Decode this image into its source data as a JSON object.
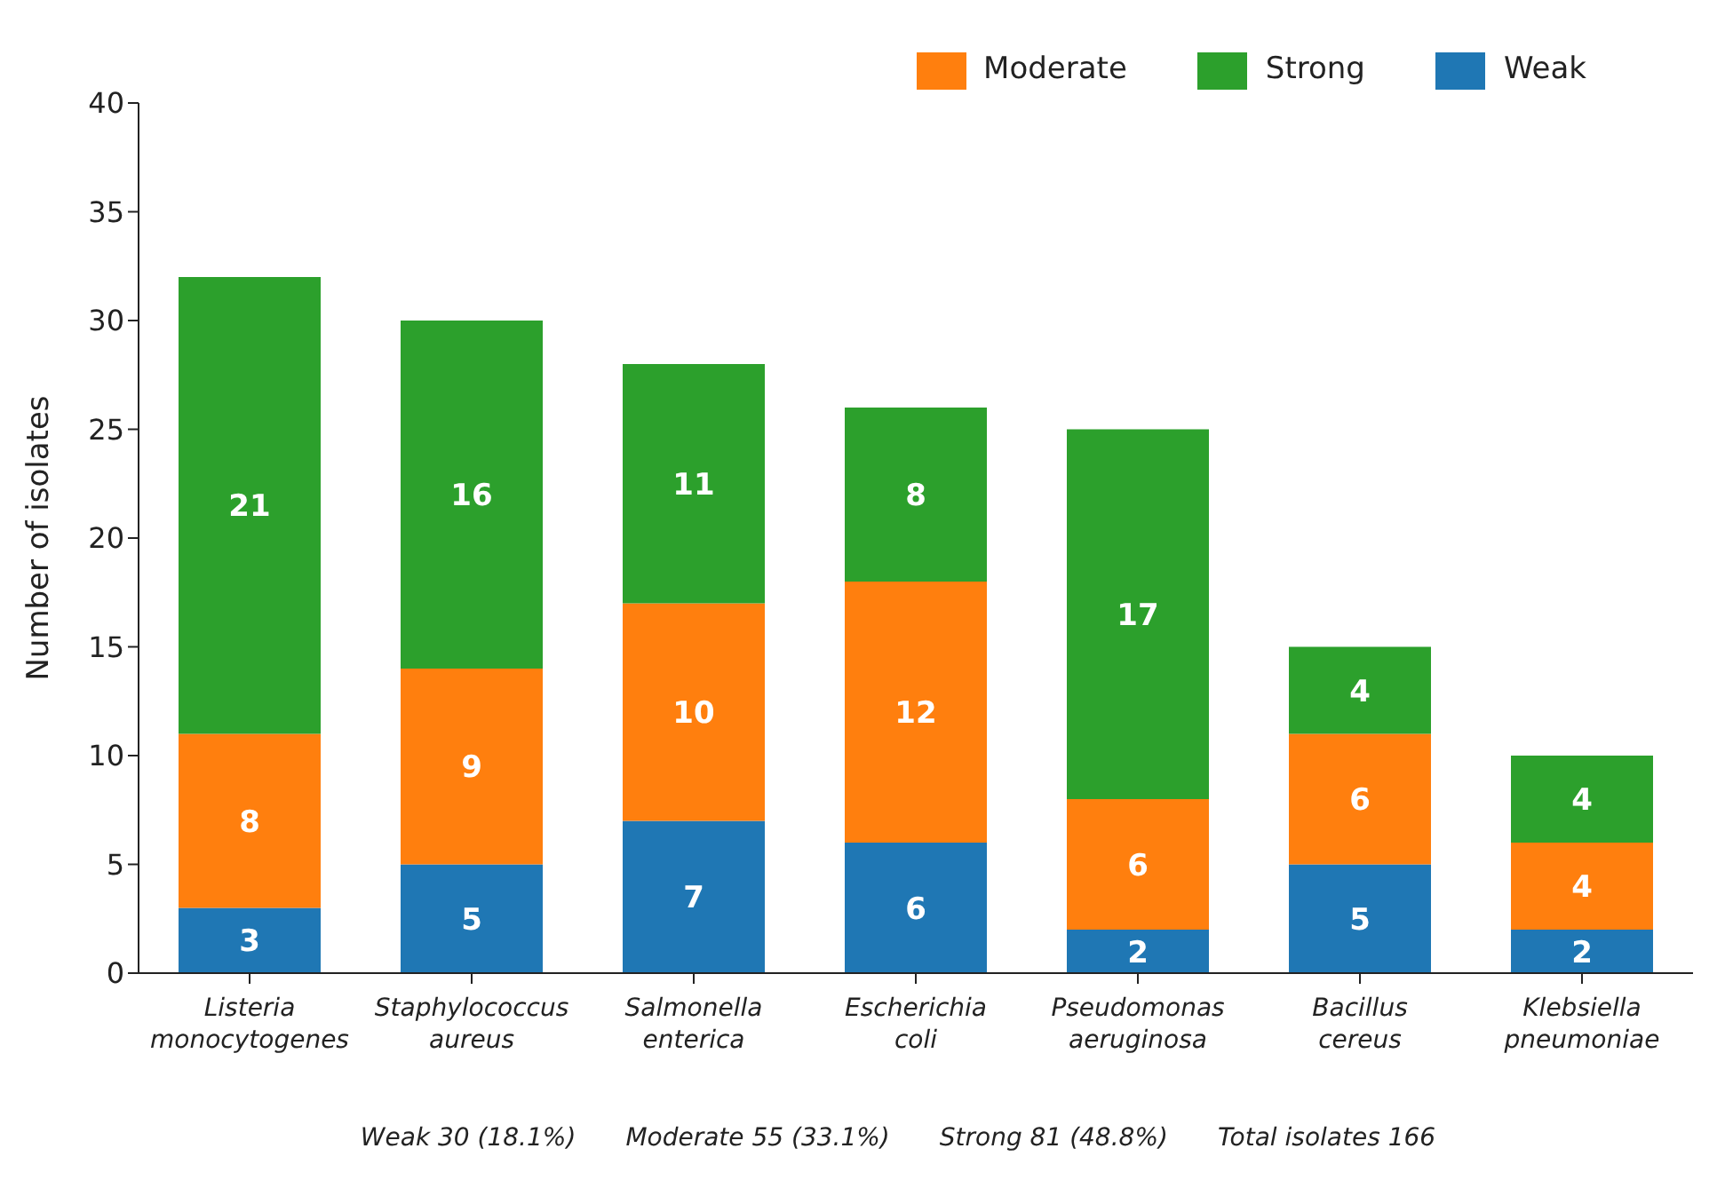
{
  "chart_data": {
    "type": "bar",
    "stacked": true,
    "ylabel": "Number of isolates",
    "categories": [
      "Listeria monocytogenes",
      "Staphylococcus aureus",
      "Salmonella enterica",
      "Escherichia coli",
      "Pseudomonas aeruginosa",
      "Bacillus cereus",
      "Klebsiella pneumoniae"
    ],
    "series": [
      {
        "name": "Weak",
        "color": "#1f77b4",
        "values": [
          3,
          5,
          7,
          6,
          2,
          5,
          2
        ]
      },
      {
        "name": "Moderate",
        "color": "#ff7f0e",
        "values": [
          8,
          9,
          10,
          12,
          6,
          6,
          4
        ]
      },
      {
        "name": "Strong",
        "color": "#2ca02c",
        "values": [
          21,
          16,
          11,
          8,
          17,
          4,
          4
        ]
      }
    ],
    "ylim": [
      0,
      40
    ],
    "yticks": [
      0,
      5,
      10,
      15,
      20,
      25,
      30,
      35,
      40
    ],
    "data_labels": true,
    "legend": "top right",
    "grid": false,
    "annotations": [
      "Weak 30 (18.1%)",
      "Moderate 55 (33.1%)",
      "Strong 81 (48.8%)",
      "Total isolates 166"
    ]
  }
}
